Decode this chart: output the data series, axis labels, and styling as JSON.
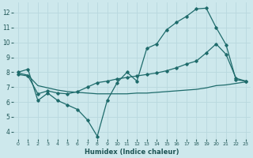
{
  "xlabel": "Humidex (Indice chaleur)",
  "background_color": "#cde8ec",
  "grid_color": "#b8d8de",
  "line_color": "#1e6b6b",
  "xlim": [
    -0.5,
    23.5
  ],
  "ylim": [
    3.5,
    12.7
  ],
  "yticks": [
    4,
    5,
    6,
    7,
    8,
    9,
    10,
    11,
    12
  ],
  "xticks": [
    0,
    1,
    2,
    3,
    4,
    5,
    6,
    7,
    8,
    9,
    10,
    11,
    12,
    13,
    14,
    15,
    16,
    17,
    18,
    19,
    20,
    21,
    22,
    23
  ],
  "line1_x": [
    0,
    1,
    2,
    3,
    4,
    5,
    6,
    7,
    8,
    9,
    10,
    11,
    12,
    13,
    14,
    15,
    16,
    17,
    18,
    19,
    20,
    21,
    22,
    23
  ],
  "line1_y": [
    8.0,
    8.2,
    6.1,
    6.6,
    6.1,
    5.8,
    5.5,
    4.8,
    3.7,
    6.1,
    7.3,
    8.0,
    7.4,
    9.6,
    9.9,
    10.85,
    11.35,
    11.75,
    12.25,
    12.3,
    11.0,
    9.85,
    7.5,
    7.4
  ],
  "line2_x": [
    0,
    1,
    2,
    3,
    4,
    5,
    6,
    7,
    8,
    9,
    10,
    11,
    12,
    13,
    14,
    15,
    16,
    17,
    18,
    19,
    20,
    21,
    22,
    23
  ],
  "line2_y": [
    7.85,
    7.75,
    6.55,
    6.75,
    6.6,
    6.55,
    6.7,
    7.0,
    7.3,
    7.4,
    7.55,
    7.65,
    7.75,
    7.85,
    7.95,
    8.1,
    8.3,
    8.55,
    8.75,
    9.3,
    9.9,
    9.2,
    7.6,
    7.4
  ],
  "line3_x": [
    0,
    1,
    2,
    3,
    4,
    5,
    6,
    7,
    8,
    9,
    10,
    11,
    12,
    13,
    14,
    15,
    16,
    17,
    18,
    19,
    20,
    21,
    22,
    23
  ],
  "line3_y": [
    7.95,
    7.8,
    7.1,
    6.95,
    6.8,
    6.7,
    6.65,
    6.6,
    6.55,
    6.55,
    6.55,
    6.55,
    6.6,
    6.6,
    6.65,
    6.7,
    6.75,
    6.8,
    6.85,
    6.95,
    7.1,
    7.15,
    7.25,
    7.35
  ]
}
